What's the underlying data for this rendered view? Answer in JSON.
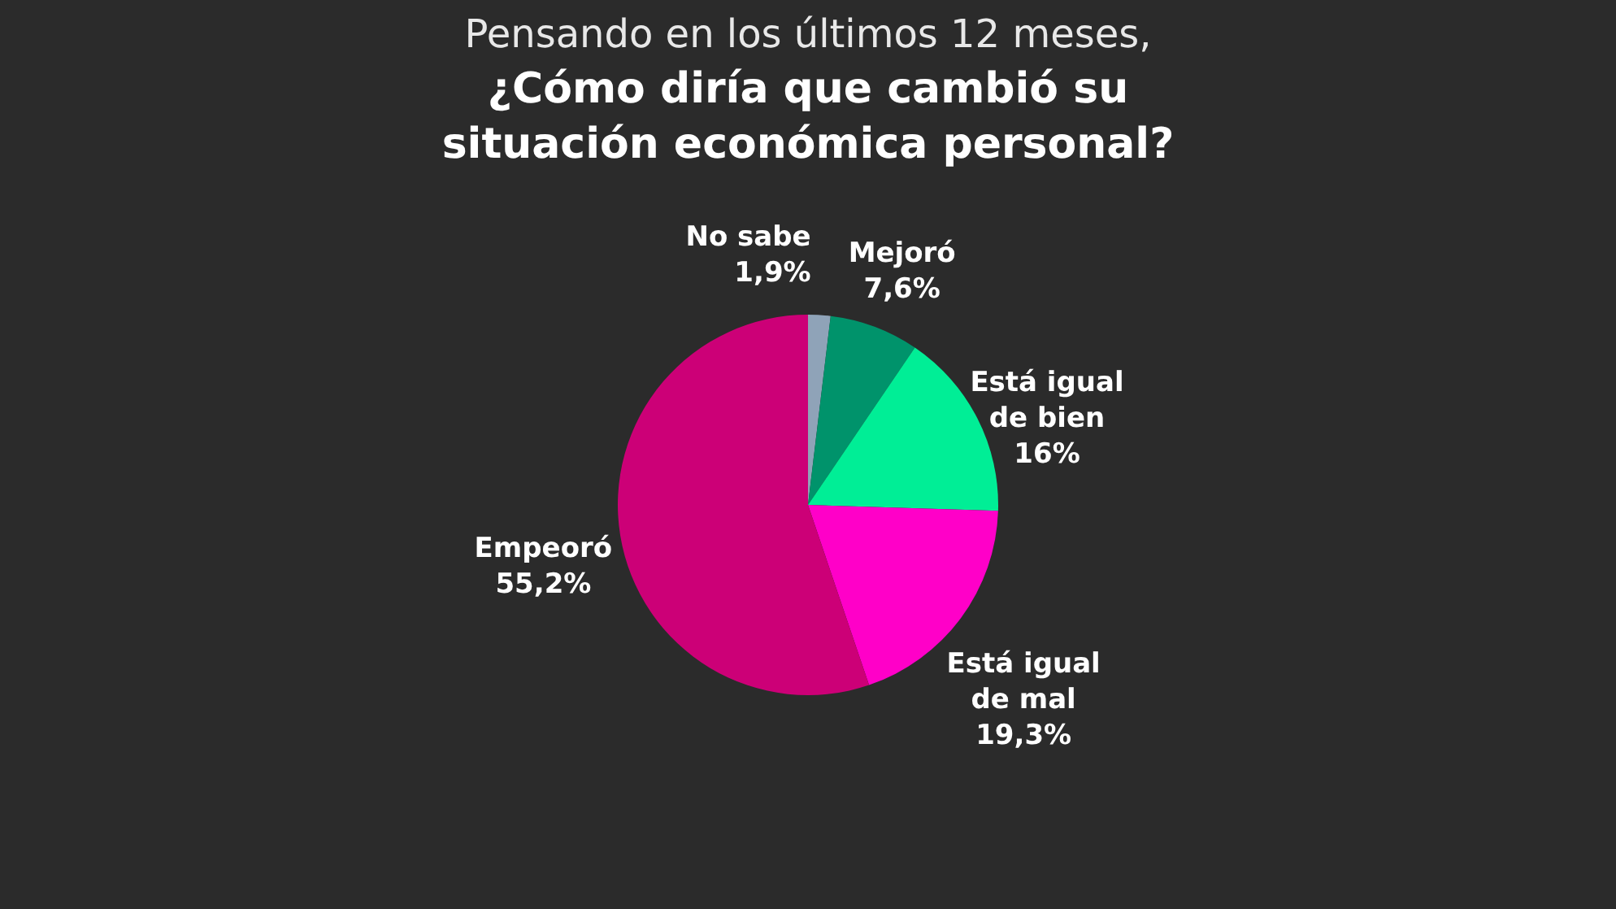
{
  "chart_data": {
    "type": "pie",
    "title": "Pensando en los últimos 12 meses,",
    "subtitle": "¿Cómo diría que cambió su situación económica personal?",
    "categories": [
      "No sabe",
      "Mejoró",
      "Está igual de bien",
      "Está igual de mal",
      "Empeoró"
    ],
    "values": [
      1.9,
      7.6,
      16,
      19.3,
      55.2
    ],
    "value_labels": [
      "1,9%",
      "7,6%",
      "16%",
      "19,3%",
      "55,2%"
    ],
    "colors": [
      "#8fa3b8",
      "#00936b",
      "#00ee96",
      "#ff00c8",
      "#cc0077"
    ],
    "legend": false
  }
}
